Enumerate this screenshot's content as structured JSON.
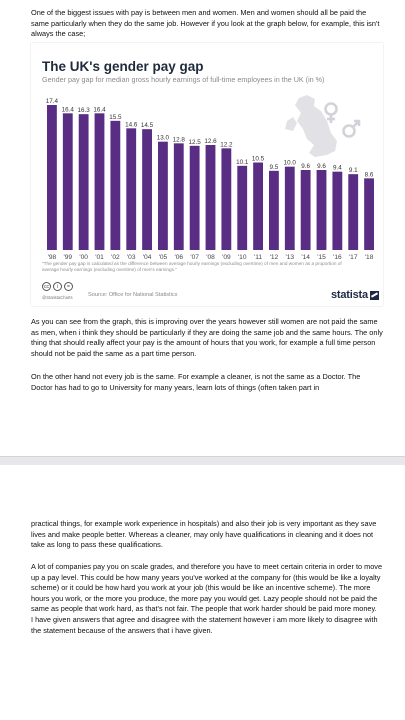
{
  "page1": {
    "para_intro": "One of the biggest issues with pay is between men and women.  Men and women should all be paid the same particularly when they do the same job.  However if you look at the graph below, for example, this isn't always the case;",
    "para_graph": "As you can see from the graph, this is improving over the years however still women are not paid the same as men, when i think they should be particularly if they are doing the same job and the same hours.  The only thing that should really affect your pay is the amount of hours that you work, for example a full time person should not be paid the same as a part time person.",
    "para_doctor": "On the other hand not every job is the same.  For example a cleaner, is not the same as a Doctor.  The Doctor has had to go to University for many years, learn lots of things (often taken part in"
  },
  "page2": {
    "para_cont": "practical things, for example work experience in hospitals) and also their job is very important as they save lives and make people better. Whereas a cleaner, may only have qualifications in cleaning and it does not take as long to pass these qualifications.",
    "para_scales": "A lot of companies pay you on scale grades, and therefore you have to meet certain criteria in order to move up a pay level.  This could be how many years you've worked at the company for (this would be like a loyalty scheme) or it could be how hard you work at your job (this would be like an incentive scheme).  The more hours you work, or the more you produce, the more pay you would get.  Lazy people should not be paid the same as people that work hard, as that's not fair.  The people that work harder should be paid more money.",
    "para_conclusion": "I have given answers that agree and disagree with the statement however i am more likely to disagree with the statement because of the answers that i have given."
  },
  "chart_text": {
    "note": "\"The gender pay gap is calculated as the difference between average hourly earnings (excluding overtime) of men and women as a proportion of average hourly earnings (excluding overtime) of men's earnings.\"",
    "handle": "@StatistaCharts",
    "source": "Source: Office for National Statistics",
    "logo": "statista",
    "license_icons": [
      "cc",
      "i",
      "="
    ]
  },
  "chart_data": {
    "type": "bar",
    "title": "The UK's gender pay gap",
    "subtitle": "Gender pay gap for median gross hourly earnings of full-time employees in the UK (in %)",
    "categories": [
      "'98",
      "'99",
      "'00",
      "'01",
      "'02",
      "'03",
      "'04",
      "'05",
      "'06",
      "'07",
      "'08",
      "'09",
      "'10",
      "'11",
      "'12",
      "'13",
      "'14",
      "'15",
      "'16",
      "'17",
      "'18"
    ],
    "values": [
      17.4,
      16.4,
      16.3,
      16.4,
      15.5,
      14.6,
      14.5,
      13.0,
      12.8,
      12.5,
      12.6,
      12.2,
      10.1,
      10.5,
      9.5,
      10.0,
      9.6,
      9.6,
      9.4,
      9.1,
      8.6
    ],
    "value_labels": [
      "17.4",
      "16.4",
      "16.3",
      "16.4",
      "15.5",
      "14.6",
      "14.5",
      "13.0",
      "12.8",
      "12.5",
      "12.6",
      "12.2",
      "10.1",
      "10.5",
      "9.5",
      "10.0",
      "9.6",
      "9.6",
      "9.4",
      "9.1",
      "8.6"
    ],
    "ylim": [
      0,
      17.4
    ],
    "bar_color": "#5a2d84",
    "grid": false,
    "legend": "none"
  }
}
